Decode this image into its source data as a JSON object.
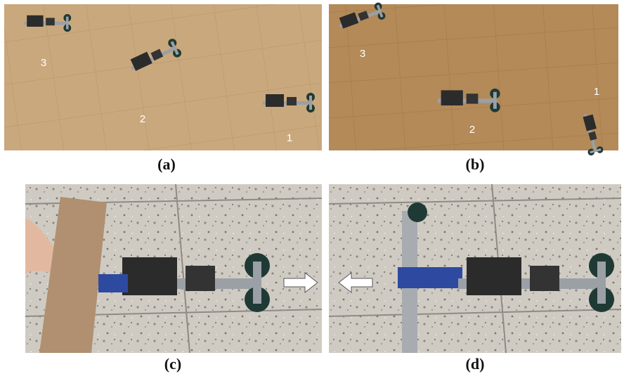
{
  "panels": [
    {
      "label": "(a)",
      "numbers": [
        "3",
        "2",
        "1"
      ]
    },
    {
      "label": "(b)",
      "numbers": [
        "3",
        "2",
        "1"
      ]
    },
    {
      "label": "(c)"
    },
    {
      "label": "(d)"
    }
  ]
}
